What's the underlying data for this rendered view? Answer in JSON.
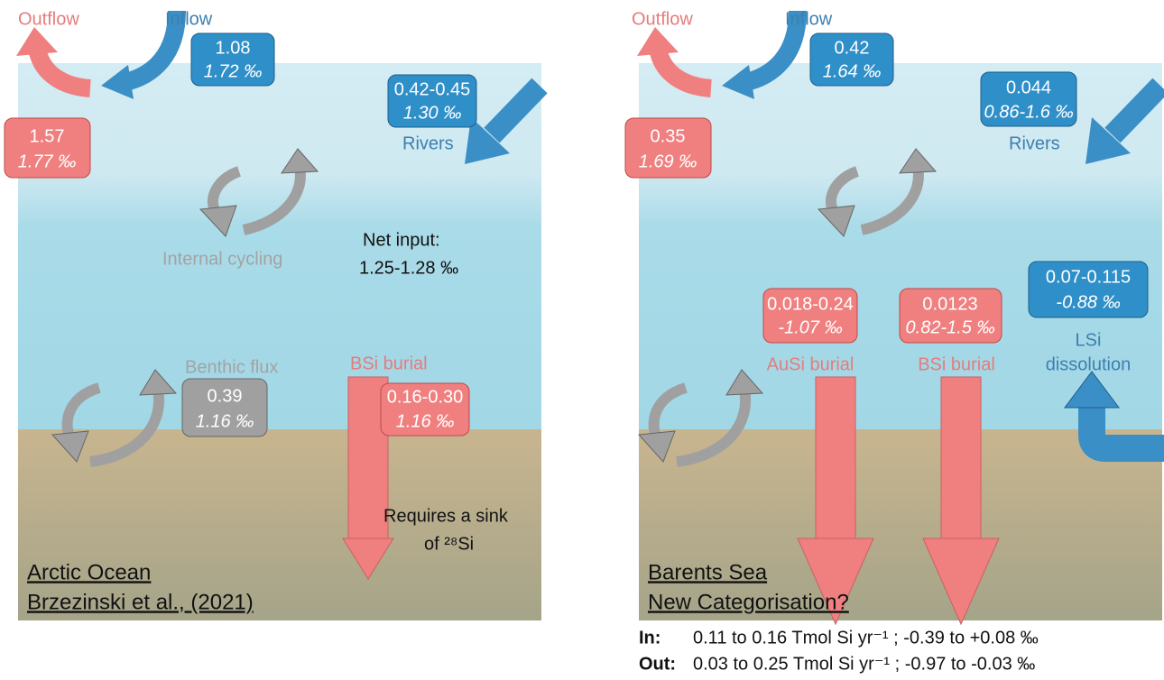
{
  "left": {
    "outflow": "Outflow",
    "inflow": "Inflow",
    "inflow_box": [
      "1.08",
      "1.72 ‰"
    ],
    "outflow_box": [
      "1.57",
      "1.77 ‰"
    ],
    "rivers_box": [
      "0.42-0.45",
      "1.30 ‰"
    ],
    "rivers": "Rivers",
    "internal_cycling": "Internal cycling",
    "net_input": [
      "Net input:",
      "1.25-1.28 ‰"
    ],
    "benthic_flux": "Benthic flux",
    "benthic_box": [
      "0.39",
      "1.16 ‰"
    ],
    "bsi_burial": "BSi burial",
    "bsi_box": [
      "0.16-0.30",
      "1.16 ‰"
    ],
    "note": [
      "Requires a sink",
      "of ²⁸Si"
    ],
    "caption": [
      "Arctic Ocean",
      "Brzezinski et al., (2021)"
    ]
  },
  "right": {
    "outflow": "Outflow",
    "inflow": "Inflow",
    "inflow_box": [
      "0.42",
      "1.64 ‰"
    ],
    "outflow_box": [
      "0.35",
      "1.69 ‰"
    ],
    "rivers_box": [
      "0.044",
      "0.86-1.6 ‰"
    ],
    "rivers": "Rivers",
    "lsi_box": [
      "0.07-0.115",
      "-0.88 ‰"
    ],
    "lsi": [
      "LSi",
      "dissolution"
    ],
    "ausi_box": [
      "0.018-0.24",
      "-1.07 ‰"
    ],
    "ausi_burial": "AuSi burial",
    "bsi_box": [
      "0.0123",
      "0.82-1.5 ‰"
    ],
    "bsi_burial": "BSi burial",
    "caption": [
      "Barents Sea",
      "New Categorisation?"
    ]
  },
  "summary": [
    {
      "label": "In:",
      "text": "0.11 to 0.16 Tmol Si yr⁻¹  ;  -0.39 to +0.08 ‰"
    },
    {
      "label": "Out:",
      "text": "0.03 to 0.25 Tmol Si yr⁻¹  ;  -0.97 to  -0.03 ‰"
    }
  ]
}
